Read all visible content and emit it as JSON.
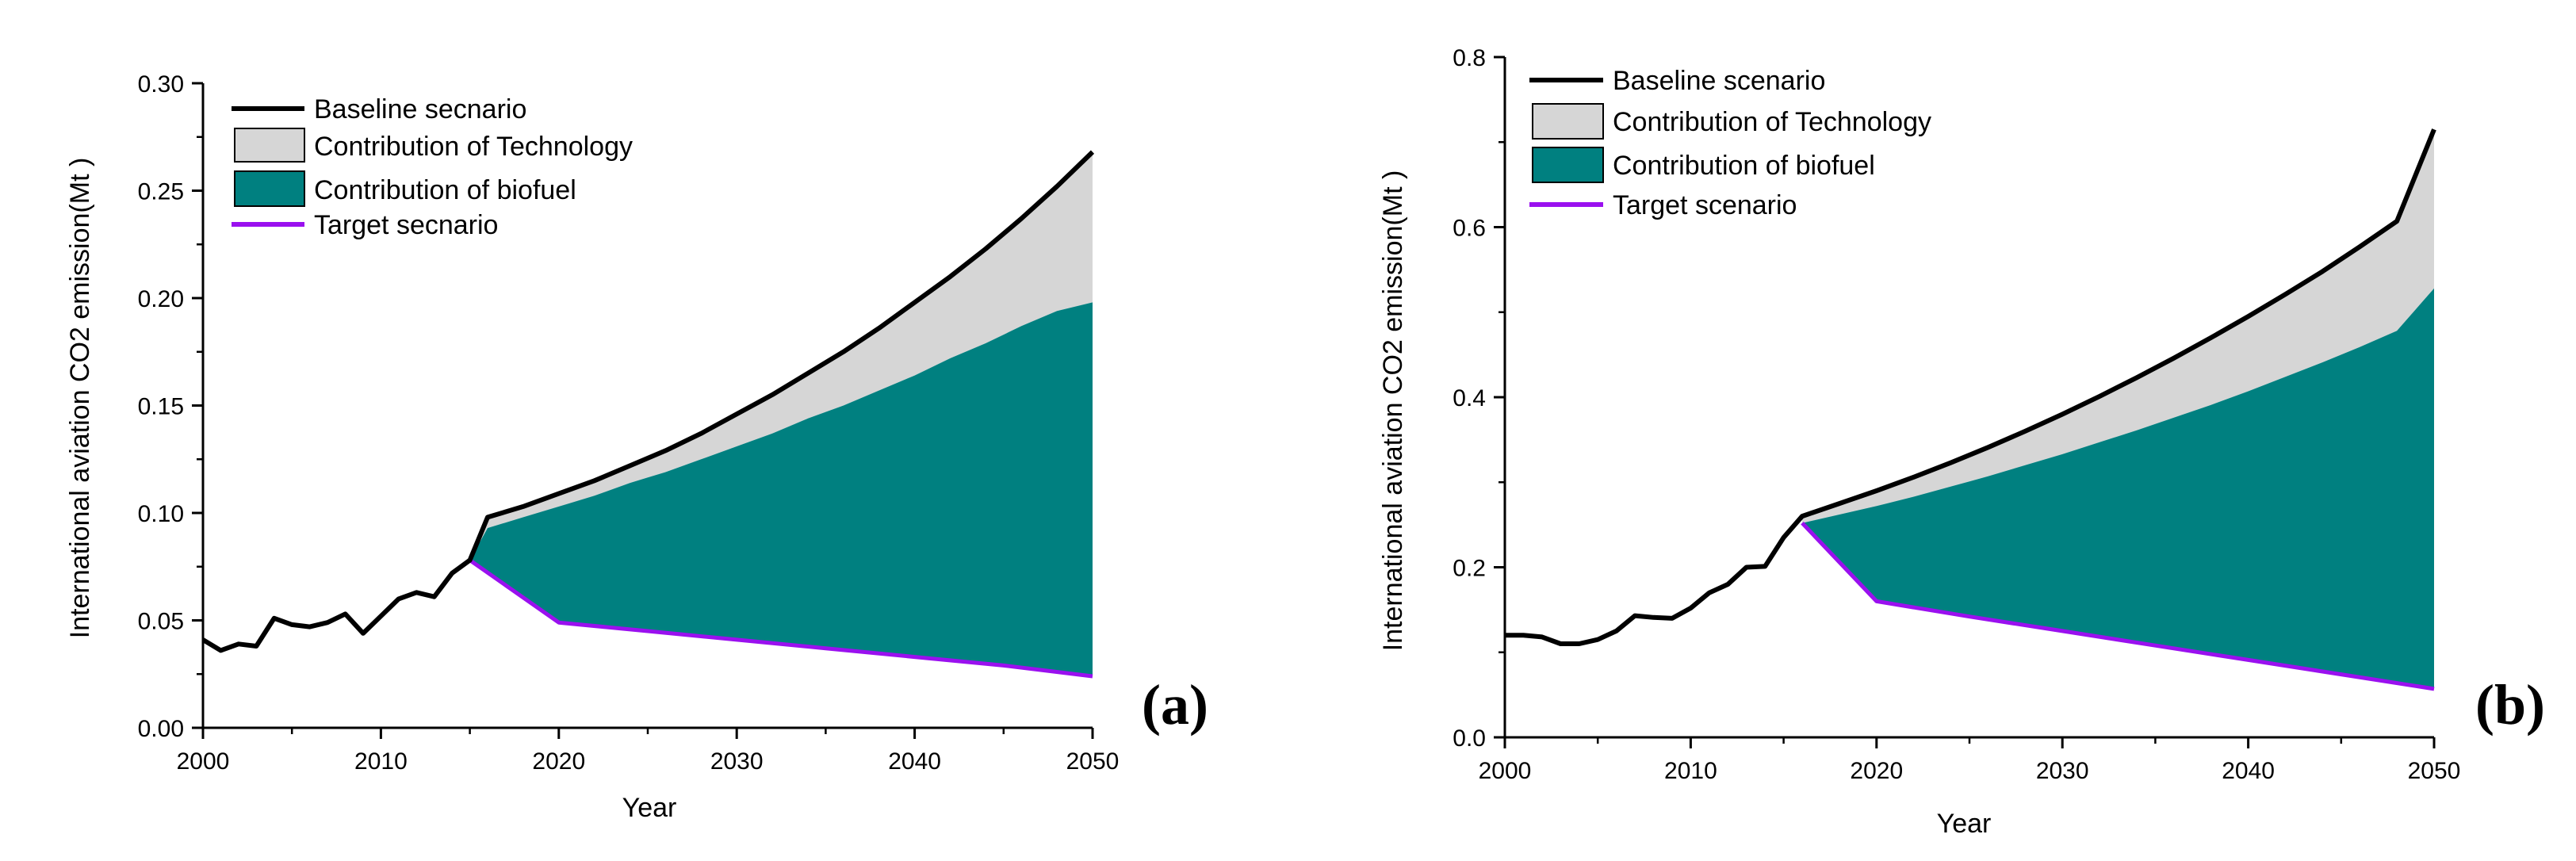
{
  "colors": {
    "baseline": "#000000",
    "technology": "#d6d6d6",
    "biofuel": "#008080",
    "target": "#9a10ef"
  },
  "chart_data": [
    {
      "type": "area",
      "panel_label": "(a)",
      "xlabel": "Year",
      "ylabel": "International aviation CO2 emission(Mt )",
      "xlim": [
        2000,
        2050
      ],
      "ylim": [
        0,
        0.3
      ],
      "xticks": [
        "2000",
        "2010",
        "2020",
        "2030",
        "2040",
        "2050"
      ],
      "yticks": [
        "0.00",
        "0.05",
        "0.10",
        "0.15",
        "0.20",
        "0.25",
        "0.30"
      ],
      "legend": [
        {
          "key": "baseline",
          "label": "Baseline secnario"
        },
        {
          "key": "technology",
          "label": "Contribution of Technology"
        },
        {
          "key": "biofuel",
          "label": "Contribution of biofuel"
        },
        {
          "key": "target",
          "label": "Target secnario"
        }
      ],
      "series": {
        "baseline": [
          [
            2000,
            0.041
          ],
          [
            2001,
            0.036
          ],
          [
            2002,
            0.039
          ],
          [
            2003,
            0.038
          ],
          [
            2004,
            0.051
          ],
          [
            2005,
            0.048
          ],
          [
            2006,
            0.047
          ],
          [
            2007,
            0.049
          ],
          [
            2008,
            0.053
          ],
          [
            2009,
            0.044
          ],
          [
            2010,
            0.052
          ],
          [
            2011,
            0.06
          ],
          [
            2012,
            0.063
          ],
          [
            2013,
            0.061
          ],
          [
            2014,
            0.072
          ],
          [
            2015,
            0.078
          ],
          [
            2016,
            0.098
          ],
          [
            2018,
            0.103
          ],
          [
            2020,
            0.109
          ],
          [
            2022,
            0.115
          ],
          [
            2024,
            0.122
          ],
          [
            2026,
            0.129
          ],
          [
            2028,
            0.137
          ],
          [
            2030,
            0.146
          ],
          [
            2032,
            0.155
          ],
          [
            2034,
            0.165
          ],
          [
            2036,
            0.175
          ],
          [
            2038,
            0.186
          ],
          [
            2040,
            0.198
          ],
          [
            2042,
            0.21
          ],
          [
            2044,
            0.223
          ],
          [
            2046,
            0.237
          ],
          [
            2048,
            0.252
          ],
          [
            2050,
            0.268
          ]
        ],
        "biofuel_upper": [
          [
            2015,
            0.078
          ],
          [
            2016,
            0.093
          ],
          [
            2018,
            0.098
          ],
          [
            2020,
            0.103
          ],
          [
            2022,
            0.108
          ],
          [
            2024,
            0.114
          ],
          [
            2026,
            0.119
          ],
          [
            2028,
            0.125
          ],
          [
            2030,
            0.131
          ],
          [
            2032,
            0.137
          ],
          [
            2034,
            0.144
          ],
          [
            2036,
            0.15
          ],
          [
            2038,
            0.157
          ],
          [
            2040,
            0.164
          ],
          [
            2042,
            0.172
          ],
          [
            2044,
            0.179
          ],
          [
            2046,
            0.187
          ],
          [
            2048,
            0.194
          ],
          [
            2050,
            0.198
          ]
        ],
        "target": [
          [
            2015,
            0.078
          ],
          [
            2020,
            0.049
          ],
          [
            2025,
            0.045
          ],
          [
            2030,
            0.041
          ],
          [
            2035,
            0.037
          ],
          [
            2040,
            0.033
          ],
          [
            2045,
            0.029
          ],
          [
            2050,
            0.024
          ]
        ]
      }
    },
    {
      "type": "area",
      "panel_label": "(b)",
      "xlabel": "Year",
      "ylabel": "International aviation CO2 emission(Mt )",
      "xlim": [
        2000,
        2050
      ],
      "ylim": [
        0,
        0.8
      ],
      "xticks": [
        "2000",
        "2010",
        "2020",
        "2030",
        "2040",
        "2050"
      ],
      "yticks": [
        "0.0",
        "0.2",
        "0.4",
        "0.6",
        "0.8"
      ],
      "legend": [
        {
          "key": "baseline",
          "label": "Baseline scenario"
        },
        {
          "key": "technology",
          "label": "Contribution of Technology"
        },
        {
          "key": "biofuel",
          "label": "Contribution of biofuel"
        },
        {
          "key": "target",
          "label": "Target scenario"
        }
      ],
      "series": {
        "baseline": [
          [
            2000,
            0.12
          ],
          [
            2001,
            0.12
          ],
          [
            2002,
            0.118
          ],
          [
            2003,
            0.11
          ],
          [
            2004,
            0.11
          ],
          [
            2005,
            0.115
          ],
          [
            2006,
            0.125
          ],
          [
            2007,
            0.143
          ],
          [
            2008,
            0.141
          ],
          [
            2009,
            0.14
          ],
          [
            2010,
            0.152
          ],
          [
            2011,
            0.17
          ],
          [
            2012,
            0.18
          ],
          [
            2013,
            0.2
          ],
          [
            2014,
            0.201
          ],
          [
            2015,
            0.235
          ],
          [
            2016,
            0.26
          ],
          [
            2018,
            0.275
          ],
          [
            2020,
            0.29
          ],
          [
            2022,
            0.306
          ],
          [
            2024,
            0.323
          ],
          [
            2026,
            0.341
          ],
          [
            2028,
            0.36
          ],
          [
            2030,
            0.38
          ],
          [
            2032,
            0.401
          ],
          [
            2034,
            0.423
          ],
          [
            2036,
            0.446
          ],
          [
            2038,
            0.47
          ],
          [
            2040,
            0.495
          ],
          [
            2042,
            0.521
          ],
          [
            2044,
            0.548
          ],
          [
            2046,
            0.577
          ],
          [
            2048,
            0.607
          ],
          [
            2050,
            0.715
          ]
        ],
        "biofuel_upper": [
          [
            2016,
            0.252
          ],
          [
            2018,
            0.262
          ],
          [
            2020,
            0.272
          ],
          [
            2022,
            0.283
          ],
          [
            2024,
            0.295
          ],
          [
            2026,
            0.307
          ],
          [
            2028,
            0.32
          ],
          [
            2030,
            0.333
          ],
          [
            2032,
            0.347
          ],
          [
            2034,
            0.361
          ],
          [
            2036,
            0.376
          ],
          [
            2038,
            0.391
          ],
          [
            2040,
            0.407
          ],
          [
            2042,
            0.424
          ],
          [
            2044,
            0.441
          ],
          [
            2046,
            0.459
          ],
          [
            2048,
            0.478
          ],
          [
            2050,
            0.528
          ]
        ],
        "target": [
          [
            2016,
            0.252
          ],
          [
            2020,
            0.16
          ],
          [
            2025,
            0.142
          ],
          [
            2030,
            0.125
          ],
          [
            2035,
            0.108
          ],
          [
            2040,
            0.091
          ],
          [
            2045,
            0.074
          ],
          [
            2050,
            0.057
          ]
        ]
      }
    }
  ]
}
